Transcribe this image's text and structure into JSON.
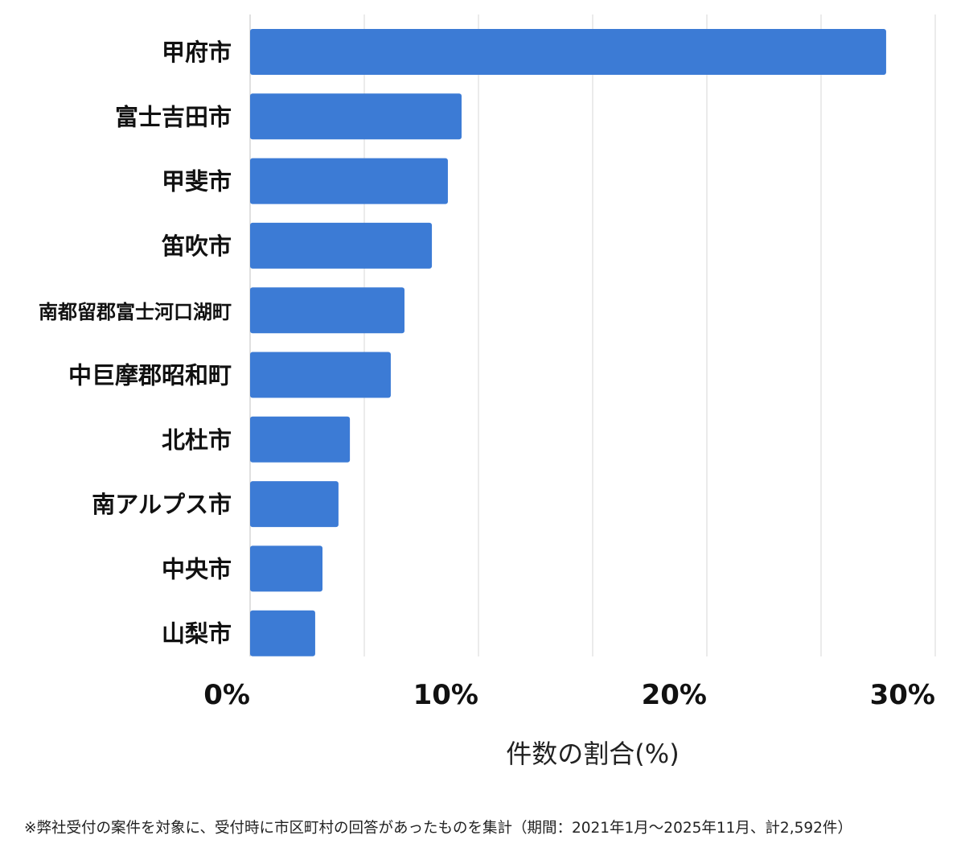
{
  "chart_data": {
    "type": "bar",
    "orientation": "horizontal",
    "categories": [
      "甲府市",
      "富士吉田市",
      "甲斐市",
      "笛吹市",
      "南都留郡富士河口湖町",
      "中巨摩郡昭和町",
      "北杜市",
      "南アルプス市",
      "中央市",
      "山梨市"
    ],
    "values": [
      27.85,
      9.26,
      8.66,
      7.96,
      6.76,
      6.16,
      4.37,
      3.87,
      3.17,
      2.85
    ],
    "xlabel": "件数の割合(%)",
    "ylabel": "",
    "xlim": [
      0,
      30
    ],
    "xticks": [
      0,
      10,
      20,
      30
    ],
    "xtick_labels": [
      "0%",
      "10%",
      "20%",
      "30%"
    ],
    "grid": "vertical every 5%",
    "bar_color": "#3c7bd5",
    "footnote": "※弊社受付の案件を対象に、受付時に市区町村の回答があったものを集計（期間：2021年1月～2025年11月、計2,592件）"
  }
}
